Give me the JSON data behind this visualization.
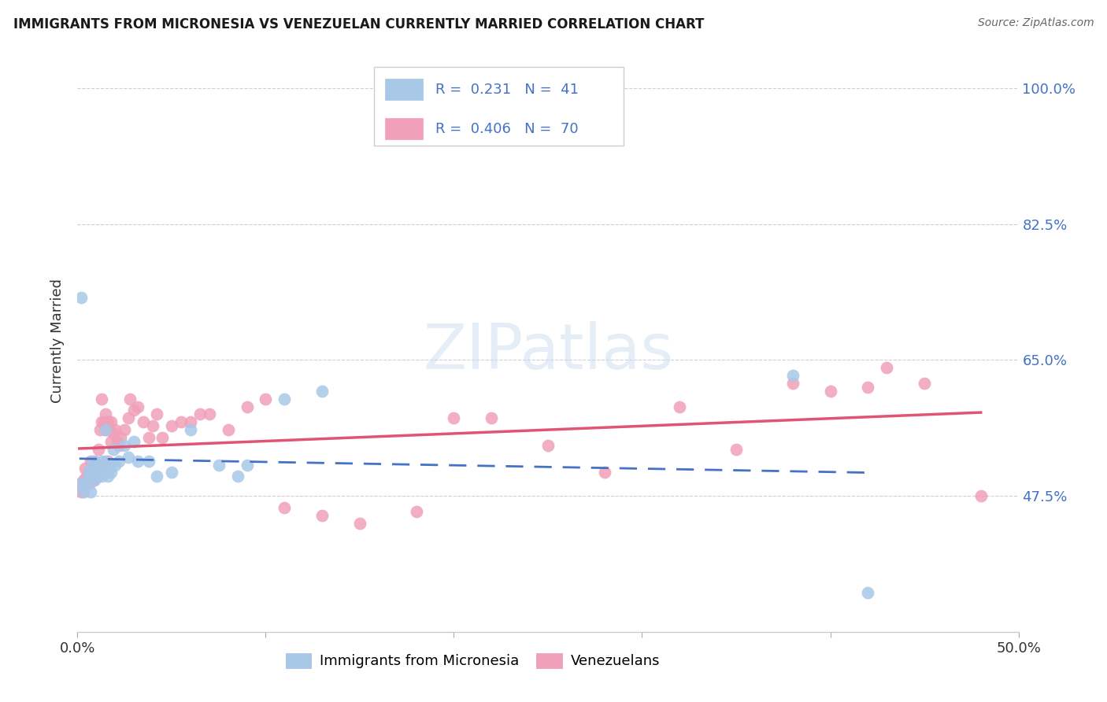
{
  "title": "IMMIGRANTS FROM MICRONESIA VS VENEZUELAN CURRENTLY MARRIED CORRELATION CHART",
  "source": "Source: ZipAtlas.com",
  "ylabel": "Currently Married",
  "yticks": [
    "47.5%",
    "65.0%",
    "82.5%",
    "100.0%"
  ],
  "ytick_vals": [
    0.475,
    0.65,
    0.825,
    1.0
  ],
  "xlim": [
    0.0,
    0.5
  ],
  "ylim": [
    0.3,
    1.05
  ],
  "legend_r1": "R =  0.231   N =  41",
  "legend_r2": "R =  0.406   N =  70",
  "color_micronesia": "#a8c8e8",
  "color_venezuela": "#f0a0b8",
  "trendline_micronesia": "#4472c4",
  "trendline_venezuela": "#e05575",
  "micronesia_x": [
    0.001,
    0.002,
    0.003,
    0.004,
    0.005,
    0.006,
    0.007,
    0.007,
    0.008,
    0.009,
    0.009,
    0.01,
    0.01,
    0.011,
    0.012,
    0.013,
    0.013,
    0.014,
    0.015,
    0.015,
    0.016,
    0.017,
    0.018,
    0.019,
    0.02,
    0.022,
    0.025,
    0.027,
    0.03,
    0.032,
    0.038,
    0.042,
    0.05,
    0.06,
    0.075,
    0.085,
    0.09,
    0.11,
    0.13,
    0.38,
    0.42
  ],
  "micronesia_y": [
    0.49,
    0.73,
    0.48,
    0.49,
    0.495,
    0.505,
    0.48,
    0.51,
    0.52,
    0.51,
    0.495,
    0.5,
    0.515,
    0.5,
    0.505,
    0.52,
    0.5,
    0.515,
    0.52,
    0.56,
    0.5,
    0.51,
    0.505,
    0.535,
    0.515,
    0.52,
    0.54,
    0.525,
    0.545,
    0.52,
    0.52,
    0.5,
    0.505,
    0.56,
    0.515,
    0.5,
    0.515,
    0.6,
    0.61,
    0.63,
    0.35
  ],
  "venezuela_x": [
    0.001,
    0.002,
    0.003,
    0.004,
    0.005,
    0.005,
    0.006,
    0.006,
    0.007,
    0.007,
    0.008,
    0.008,
    0.009,
    0.009,
    0.01,
    0.01,
    0.011,
    0.011,
    0.012,
    0.012,
    0.013,
    0.013,
    0.014,
    0.014,
    0.015,
    0.015,
    0.016,
    0.016,
    0.017,
    0.018,
    0.018,
    0.019,
    0.02,
    0.021,
    0.022,
    0.023,
    0.025,
    0.027,
    0.028,
    0.03,
    0.032,
    0.035,
    0.038,
    0.04,
    0.042,
    0.045,
    0.05,
    0.055,
    0.06,
    0.065,
    0.07,
    0.08,
    0.09,
    0.1,
    0.11,
    0.13,
    0.15,
    0.18,
    0.2,
    0.22,
    0.25,
    0.28,
    0.32,
    0.35,
    0.38,
    0.4,
    0.42,
    0.43,
    0.45,
    0.48
  ],
  "venezuela_y": [
    0.49,
    0.48,
    0.495,
    0.51,
    0.5,
    0.495,
    0.505,
    0.49,
    0.52,
    0.5,
    0.51,
    0.495,
    0.52,
    0.5,
    0.515,
    0.5,
    0.535,
    0.515,
    0.56,
    0.505,
    0.57,
    0.6,
    0.57,
    0.515,
    0.58,
    0.56,
    0.57,
    0.52,
    0.56,
    0.545,
    0.57,
    0.555,
    0.56,
    0.545,
    0.54,
    0.55,
    0.56,
    0.575,
    0.6,
    0.585,
    0.59,
    0.57,
    0.55,
    0.565,
    0.58,
    0.55,
    0.565,
    0.57,
    0.57,
    0.58,
    0.58,
    0.56,
    0.59,
    0.6,
    0.46,
    0.45,
    0.44,
    0.455,
    0.575,
    0.575,
    0.54,
    0.505,
    0.59,
    0.535,
    0.62,
    0.61,
    0.615,
    0.64,
    0.62,
    0.475
  ]
}
